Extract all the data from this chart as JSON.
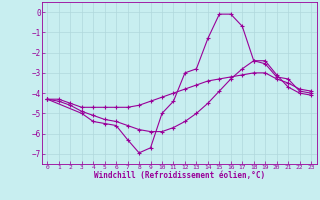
{
  "xlabel": "Windchill (Refroidissement éolien,°C)",
  "background_color": "#c8eef0",
  "line_color": "#990099",
  "grid_color": "#b0d8dc",
  "xlim": [
    -0.5,
    23.5
  ],
  "ylim": [
    -7.5,
    0.5
  ],
  "yticks": [
    0,
    -1,
    -2,
    -3,
    -4,
    -5,
    -6,
    -7
  ],
  "xticks": [
    0,
    1,
    2,
    3,
    4,
    5,
    6,
    7,
    8,
    9,
    10,
    11,
    12,
    13,
    14,
    15,
    16,
    17,
    18,
    19,
    20,
    21,
    22,
    23
  ],
  "series": [
    {
      "x": [
        0,
        1,
        2,
        3,
        4,
        5,
        6,
        7,
        8,
        9,
        10,
        11,
        12,
        13,
        14,
        15,
        16,
        17,
        18,
        19,
        20,
        21,
        22,
        23
      ],
      "y": [
        -4.3,
        -4.3,
        -4.5,
        -4.7,
        -4.7,
        -4.7,
        -4.7,
        -4.7,
        -4.6,
        -4.4,
        -4.2,
        -4.0,
        -3.8,
        -3.6,
        -3.4,
        -3.3,
        -3.2,
        -3.1,
        -3.0,
        -3.0,
        -3.3,
        -3.5,
        -3.8,
        -3.9
      ]
    },
    {
      "x": [
        0,
        1,
        2,
        3,
        4,
        5,
        6,
        7,
        8,
        9,
        10,
        11,
        12,
        13,
        14,
        15,
        16,
        17,
        18,
        19,
        20,
        21,
        22,
        23
      ],
      "y": [
        -4.3,
        -4.4,
        -4.6,
        -4.9,
        -5.1,
        -5.3,
        -5.4,
        -5.6,
        -5.8,
        -5.9,
        -5.9,
        -5.7,
        -5.4,
        -5.0,
        -4.5,
        -3.9,
        -3.3,
        -2.8,
        -2.4,
        -2.4,
        -3.1,
        -3.7,
        -4.0,
        -4.1
      ]
    },
    {
      "x": [
        0,
        3,
        4,
        5,
        6,
        7,
        8,
        9,
        10,
        11,
        12,
        13,
        14,
        15,
        16,
        17,
        18,
        19,
        20,
        21,
        22,
        23
      ],
      "y": [
        -4.3,
        -5.0,
        -5.4,
        -5.5,
        -5.6,
        -6.3,
        -6.95,
        -6.7,
        -5.0,
        -4.4,
        -3.0,
        -2.8,
        -1.3,
        -0.1,
        -0.1,
        -0.7,
        -2.4,
        -2.55,
        -3.2,
        -3.3,
        -3.9,
        -4.0
      ]
    }
  ]
}
